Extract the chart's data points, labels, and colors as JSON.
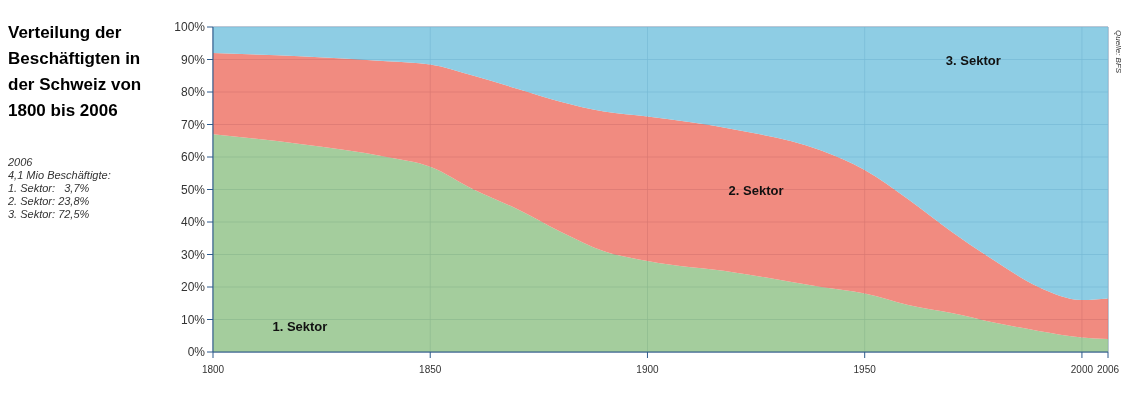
{
  "chart_data": {
    "type": "area",
    "stacked": true,
    "title": "Verteilung der Beschäftigten in der Schweiz von 1800 bis 2006",
    "x": [
      1800,
      1820,
      1840,
      1850,
      1860,
      1870,
      1880,
      1890,
      1900,
      1920,
      1940,
      1950,
      1960,
      1970,
      1980,
      1990,
      2000,
      2006
    ],
    "series": [
      {
        "name": "1. Sektor",
        "color": "#97c690",
        "values": [
          67,
          64,
          60,
          57,
          50,
          44,
          37,
          31,
          28,
          24.5,
          20,
          18,
          14.5,
          12,
          9,
          6.5,
          4.5,
          4
        ]
      },
      {
        "name": "2. Sektor",
        "color": "#ef7b6e",
        "values": [
          25,
          27,
          29.5,
          31.5,
          35,
          37,
          40,
          43,
          44.5,
          44,
          42,
          38,
          32.5,
          25,
          19,
          13.5,
          11.5,
          12.5
        ]
      },
      {
        "name": "3. Sektor",
        "color": "#7ec6e0",
        "values": [
          8,
          9,
          10.5,
          11.5,
          15,
          19,
          23,
          26,
          27.5,
          31.5,
          38,
          44,
          53,
          63,
          72,
          80,
          84,
          83.5
        ]
      }
    ],
    "xlim": [
      1800,
      2006
    ],
    "xticks": [
      1800,
      1850,
      1900,
      1950,
      2000,
      2006
    ],
    "ylim": [
      0,
      100
    ],
    "yticks": [
      {
        "value": 0,
        "label": "0%"
      },
      {
        "value": 10,
        "label": "10%"
      },
      {
        "value": 20,
        "label": "20%"
      },
      {
        "value": 30,
        "label": "30%"
      },
      {
        "value": 40,
        "label": "40%"
      },
      {
        "value": 50,
        "label": "50%"
      },
      {
        "value": 60,
        "label": "60%"
      },
      {
        "value": 70,
        "label": "70%"
      },
      {
        "value": 80,
        "label": "80%"
      },
      {
        "value": 90,
        "label": "90%"
      },
      {
        "value": 100,
        "label": "100%"
      }
    ],
    "grid": true,
    "legend": false,
    "annotations": [
      "2006",
      "4,1 Mio Beschäftigte:",
      "1. Sektor:   3,7%",
      "2. Sektor: 23,8%",
      "3. Sektor: 72,5%",
      "Quelle: BFS"
    ]
  }
}
